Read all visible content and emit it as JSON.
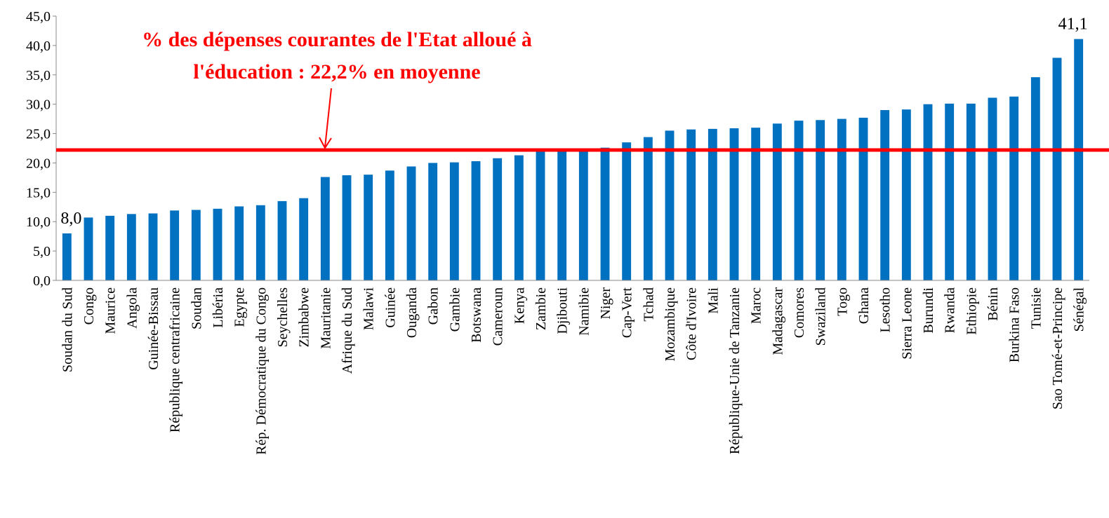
{
  "chart_data": {
    "type": "bar",
    "categories": [
      "Soudan du Sud",
      "Congo",
      "Maurice",
      "Angola",
      "Guinée-Bissau",
      "République centrafricaine",
      "Soudan",
      "Libéria",
      "Egypte",
      "Rép. Démocratique du Congo",
      "Seychelles",
      "Zimbabwe",
      "Mauritanie",
      "Afrique du Sud",
      "Malawi",
      "Guinée",
      "Ouganda",
      "Gabon",
      "Gambie",
      "Botswana",
      "Cameroun",
      "Kenya",
      "Zambie",
      "Djibouti",
      "Namibie",
      "Niger",
      "Cap-Vert",
      "Tchad",
      "Mozambique",
      "Côte d'Ivoire",
      "Mali",
      "République-Unie de Tanzanie",
      "Maroc",
      "Madagascar",
      "Comores",
      "Swaziland",
      "Togo",
      "Ghana",
      "Lesotho",
      "Sierra Leone",
      "Burundi",
      "Rwanda",
      "Ethiopie",
      "Bénin",
      "Burkina Faso",
      "Tunisie",
      "Sao Tomé-et-Principe",
      "Sénégal"
    ],
    "values": [
      8.0,
      10.7,
      11.0,
      11.3,
      11.4,
      11.9,
      12.0,
      12.2,
      12.6,
      12.8,
      13.5,
      14.0,
      17.6,
      17.9,
      18.0,
      18.7,
      19.4,
      20.0,
      20.1,
      20.3,
      20.8,
      21.3,
      22.0,
      22.1,
      22.2,
      22.6,
      23.5,
      24.4,
      25.5,
      25.7,
      25.8,
      25.9,
      26.0,
      26.7,
      27.2,
      27.3,
      27.5,
      27.7,
      29.0,
      29.1,
      30.0,
      30.1,
      30.1,
      31.1,
      31.3,
      34.6,
      37.9,
      41.1
    ],
    "value_labels": [
      "8,0",
      null,
      null,
      null,
      null,
      null,
      null,
      null,
      null,
      null,
      null,
      null,
      null,
      null,
      null,
      null,
      null,
      null,
      null,
      null,
      null,
      null,
      null,
      null,
      null,
      null,
      null,
      null,
      null,
      null,
      null,
      null,
      null,
      null,
      null,
      null,
      null,
      null,
      null,
      null,
      null,
      null,
      null,
      null,
      null,
      null,
      null,
      "41,1"
    ],
    "color": "#0070c0",
    "ylim": [
      0,
      45
    ],
    "yticks": [
      {
        "value": 0,
        "label": "0,0"
      },
      {
        "value": 5,
        "label": "5,0"
      },
      {
        "value": 10,
        "label": "10,0"
      },
      {
        "value": 15,
        "label": "15,0"
      },
      {
        "value": 20,
        "label": "20,0"
      },
      {
        "value": 25,
        "label": "25,0"
      },
      {
        "value": 30,
        "label": "30,0"
      },
      {
        "value": 35,
        "label": "35,0"
      },
      {
        "value": 40,
        "label": "40,0"
      },
      {
        "value": 45,
        "label": "45,0"
      }
    ],
    "reference_line": {
      "value": 22.2,
      "color": "#ff0000"
    },
    "annotation": [
      "% des dépenses courantes de l'Etat alloué à",
      "l'éducation : 22,2% en moyenne"
    ]
  }
}
